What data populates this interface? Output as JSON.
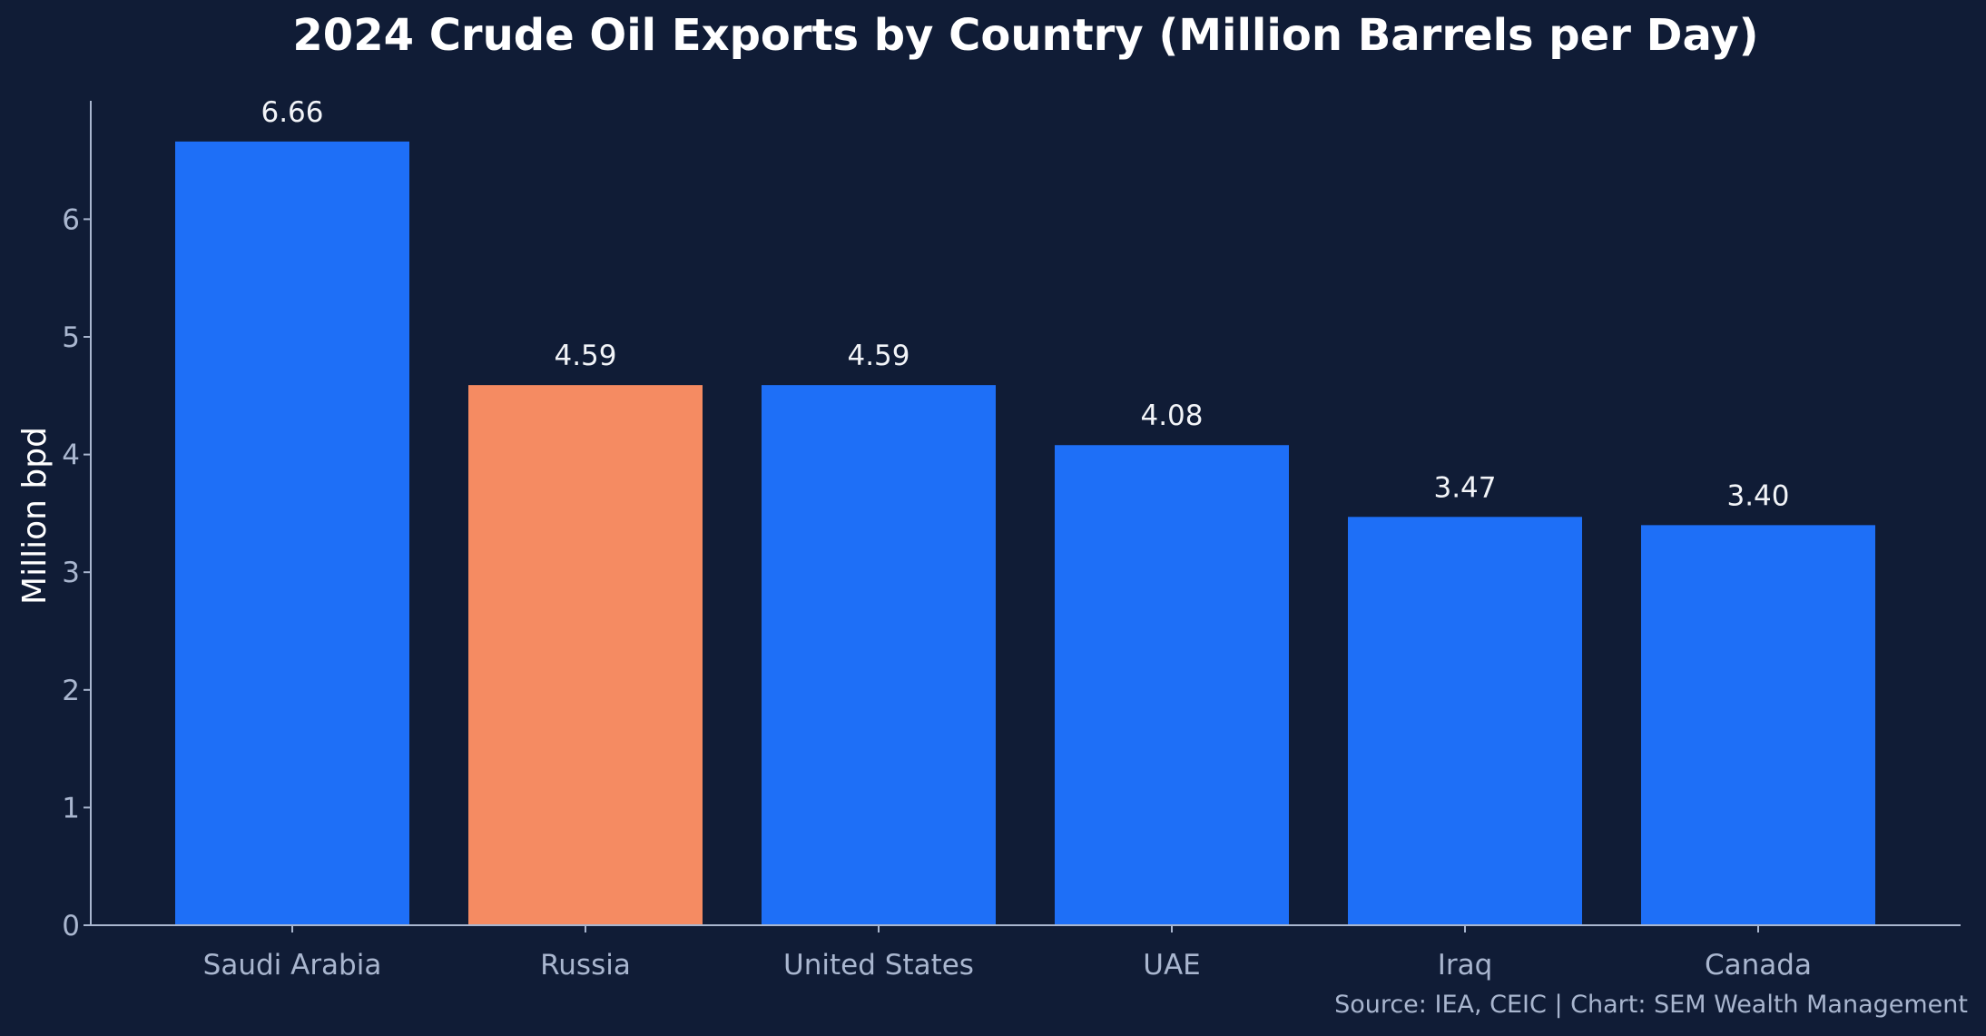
{
  "chart_data": {
    "type": "bar",
    "title": "2024 Crude Oil Exports by Country (Million Barrels per Day)",
    "xlabel": "",
    "ylabel": "Million bpd",
    "categories": [
      "Saudi Arabia",
      "Russia",
      "United States",
      "UAE",
      "Iraq",
      "Canada"
    ],
    "values": [
      6.66,
      4.59,
      4.59,
      4.08,
      3.47,
      3.4
    ],
    "value_labels": [
      "6.66",
      "4.59",
      "4.59",
      "4.08",
      "3.47",
      "3.40"
    ],
    "bar_colors": [
      "#1e6ff7",
      "#f58b62",
      "#1e6ff7",
      "#1e6ff7",
      "#1e6ff7",
      "#1e6ff7"
    ],
    "ylim": [
      0,
      7
    ],
    "yticks": [
      0,
      1,
      2,
      3,
      4,
      5,
      6
    ],
    "grid": false,
    "legend": "none",
    "source": "Source: IEA, CEIC | Chart: SEM Wealth Management"
  },
  "colors": {
    "background": "#101c36",
    "axis": "#a9b6cf",
    "tick_label": "#a9b6cf",
    "title": "#ffffff",
    "value_label": "#f2f4f8",
    "source": "#a9b6cf"
  }
}
